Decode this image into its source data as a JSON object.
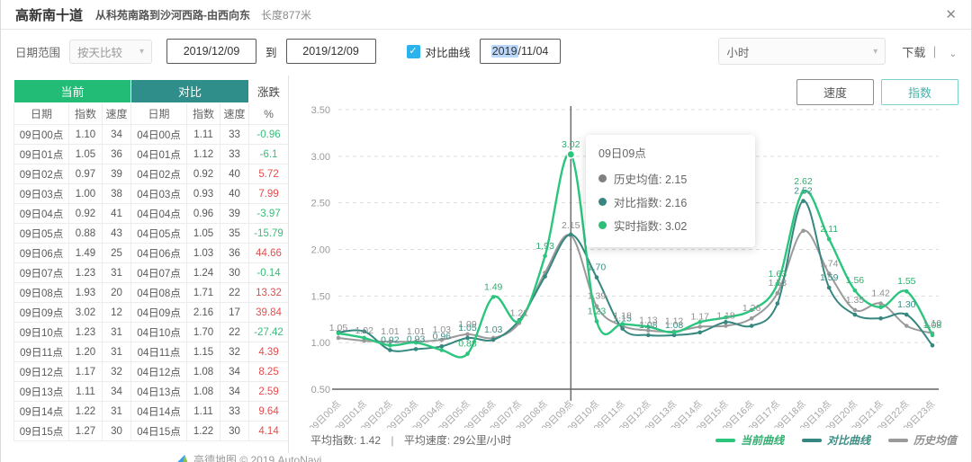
{
  "header": {
    "title": "高新南十道",
    "subtitle": "从科苑南路到沙河西路-由西向东",
    "length": "长度877米",
    "close_icon": "✕"
  },
  "toolbar": {
    "date_range_label": "日期范围",
    "compare_mode": "按天比较",
    "chevron": "▾",
    "date_from": "2019/12/09",
    "to_label": "到",
    "date_to": "2019/12/09",
    "checkbox_check": "✓",
    "compare_checkbox_label": "对比曲线",
    "compare_date_highlight": "2019",
    "compare_date_rest": "/11/04",
    "interval": "小时",
    "download_label": "下载",
    "download_divider": "｜",
    "download_chevron": "⌄"
  },
  "table": {
    "group_headers": {
      "current": "当前",
      "compare": "对比",
      "change": "涨跌"
    },
    "col_headers": [
      "日期",
      "指数",
      "速度",
      "日期",
      "指数",
      "速度",
      "%"
    ],
    "rows": [
      [
        "09日00点",
        "1.10",
        "34",
        "04日00点",
        "1.11",
        "33",
        "-0.96"
      ],
      [
        "09日01点",
        "1.05",
        "36",
        "04日01点",
        "1.12",
        "33",
        "-6.1"
      ],
      [
        "09日02点",
        "0.97",
        "39",
        "04日02点",
        "0.92",
        "40",
        "5.72"
      ],
      [
        "09日03点",
        "1.00",
        "38",
        "04日03点",
        "0.93",
        "40",
        "7.99"
      ],
      [
        "09日04点",
        "0.92",
        "41",
        "04日04点",
        "0.96",
        "39",
        "-3.97"
      ],
      [
        "09日05点",
        "0.88",
        "43",
        "04日05点",
        "1.05",
        "35",
        "-15.79"
      ],
      [
        "09日06点",
        "1.49",
        "25",
        "04日06点",
        "1.03",
        "36",
        "44.66"
      ],
      [
        "09日07点",
        "1.23",
        "31",
        "04日07点",
        "1.24",
        "30",
        "-0.14"
      ],
      [
        "09日08点",
        "1.93",
        "20",
        "04日08点",
        "1.71",
        "22",
        "13.32"
      ],
      [
        "09日09点",
        "3.02",
        "12",
        "04日09点",
        "2.16",
        "17",
        "39.84"
      ],
      [
        "09日10点",
        "1.23",
        "31",
        "04日10点",
        "1.70",
        "22",
        "-27.42"
      ],
      [
        "09日11点",
        "1.20",
        "31",
        "04日11点",
        "1.15",
        "32",
        "4.39"
      ],
      [
        "09日12点",
        "1.17",
        "32",
        "04日12点",
        "1.08",
        "34",
        "8.25"
      ],
      [
        "09日13点",
        "1.11",
        "34",
        "04日13点",
        "1.08",
        "34",
        "2.59"
      ],
      [
        "09日14点",
        "1.22",
        "31",
        "04日14点",
        "1.11",
        "33",
        "9.64"
      ],
      [
        "09日15点",
        "1.27",
        "30",
        "04日15点",
        "1.22",
        "30",
        "4.14"
      ]
    ]
  },
  "chart": {
    "tab_speed": "速度",
    "tab_index": "指数",
    "tooltip": {
      "title": "09日09点",
      "rows": [
        {
          "label": "历史均值",
          "value": "2.15",
          "color": "#808080"
        },
        {
          "label": "对比指数",
          "value": "2.16",
          "color": "#35877f"
        },
        {
          "label": "实时指数",
          "value": "3.02",
          "color": "#2bbf77"
        }
      ]
    },
    "stats": {
      "avg_index": "平均指数: 1.42",
      "divider": "|",
      "avg_speed": "平均速度: 29公里/小时"
    },
    "watermark": "高德地图 © 2019 AutoNavi"
  },
  "chart_data": {
    "type": "line",
    "title": "",
    "xlabel": "",
    "ylabel": "",
    "ylim": [
      0.5,
      3.5
    ],
    "yticks": [
      "0.50",
      "1.00",
      "1.50",
      "2.00",
      "2.50",
      "3.00",
      "3.50"
    ],
    "grid": "dashed-horizontal",
    "legend_position": "bottom-right",
    "highlight_x": 9,
    "x": [
      "09日00点",
      "09日01点",
      "09日02点",
      "09日03点",
      "09日04点",
      "09日05点",
      "09日06点",
      "09日07点",
      "09日08点",
      "09日09点",
      "09日10点",
      "09日11点",
      "09日12点",
      "09日13点",
      "09日14点",
      "09日15点",
      "09日16点",
      "09日17点",
      "09日18点",
      "09日19点",
      "09日20点",
      "09日21点",
      "09日22点",
      "09日23点"
    ],
    "series": [
      {
        "name": "当前曲线",
        "color": "#2bc57e",
        "label_color": "#2fae6f",
        "values": [
          1.1,
          1.05,
          0.97,
          1.0,
          0.92,
          0.88,
          1.49,
          1.23,
          1.93,
          3.02,
          1.23,
          1.2,
          1.17,
          1.11,
          1.22,
          1.27,
          1.35,
          1.63,
          2.62,
          2.11,
          1.56,
          1.38,
          1.55,
          1.08
        ]
      },
      {
        "name": "对比曲线",
        "color": "#35877f",
        "label_color": "#3e8e85",
        "values": [
          1.11,
          1.12,
          0.92,
          0.93,
          0.96,
          1.05,
          1.03,
          1.24,
          1.71,
          2.16,
          1.7,
          1.15,
          1.08,
          1.08,
          1.11,
          1.22,
          1.18,
          1.42,
          2.52,
          1.59,
          1.3,
          1.26,
          1.3,
          0.97
        ]
      },
      {
        "name": "历史均值",
        "color": "#9a9a9a",
        "label_color": "#8f8f8f",
        "values": [
          1.05,
          1.02,
          1.01,
          1.01,
          1.03,
          1.09,
          1.05,
          1.21,
          1.75,
          2.15,
          1.39,
          1.18,
          1.13,
          1.12,
          1.17,
          1.18,
          1.26,
          1.53,
          2.2,
          1.74,
          1.35,
          1.42,
          1.18,
          1.1
        ]
      }
    ],
    "point_labels": [
      {
        "s": 2,
        "i": 0,
        "v": "1.05"
      },
      {
        "s": 2,
        "i": 1,
        "v": "1.02"
      },
      {
        "s": 2,
        "i": 2,
        "v": "1.01"
      },
      {
        "s": 2,
        "i": 3,
        "v": "1.01"
      },
      {
        "s": 2,
        "i": 4,
        "v": "1.03"
      },
      {
        "s": 2,
        "i": 5,
        "v": "1.09"
      },
      {
        "s": 1,
        "i": 2,
        "v": "0.92"
      },
      {
        "s": 1,
        "i": 3,
        "v": "0.93"
      },
      {
        "s": 1,
        "i": 4,
        "v": "0.96"
      },
      {
        "s": 0,
        "i": 5,
        "v": "0.88"
      },
      {
        "s": 1,
        "i": 5,
        "v": "1.05"
      },
      {
        "s": 1,
        "i": 6,
        "v": "1.03"
      },
      {
        "s": 0,
        "i": 6,
        "v": "1.49"
      },
      {
        "s": 2,
        "i": 7,
        "v": "1.21"
      },
      {
        "s": 0,
        "i": 8,
        "v": "1.93"
      },
      {
        "s": 0,
        "i": 9,
        "v": "3.02"
      },
      {
        "s": 2,
        "i": 9,
        "v": "2.15"
      },
      {
        "s": 1,
        "i": 10,
        "v": "1.70"
      },
      {
        "s": 2,
        "i": 10,
        "v": "1.39"
      },
      {
        "s": 0,
        "i": 10,
        "v": "1.23"
      },
      {
        "s": 1,
        "i": 11,
        "v": "1.15"
      },
      {
        "s": 2,
        "i": 11,
        "v": "1.18"
      },
      {
        "s": 1,
        "i": 12,
        "v": "1.08"
      },
      {
        "s": 2,
        "i": 12,
        "v": "1.13"
      },
      {
        "s": 1,
        "i": 13,
        "v": "1.08"
      },
      {
        "s": 2,
        "i": 13,
        "v": "1.12"
      },
      {
        "s": 2,
        "i": 14,
        "v": "1.17"
      },
      {
        "s": 2,
        "i": 15,
        "v": "1.18"
      },
      {
        "s": 2,
        "i": 16,
        "v": "1.26"
      },
      {
        "s": 2,
        "i": 17,
        "v": "1.53"
      },
      {
        "s": 0,
        "i": 17,
        "v": "1.63"
      },
      {
        "s": 0,
        "i": 18,
        "v": "2.62"
      },
      {
        "s": 1,
        "i": 18,
        "v": "2.52"
      },
      {
        "s": 0,
        "i": 19,
        "v": "2.11"
      },
      {
        "s": 2,
        "i": 19,
        "v": "1.74"
      },
      {
        "s": 1,
        "i": 19,
        "v": "1.59"
      },
      {
        "s": 0,
        "i": 20,
        "v": "1.56"
      },
      {
        "s": 2,
        "i": 20,
        "v": "1.35"
      },
      {
        "s": 2,
        "i": 21,
        "v": "1.42"
      },
      {
        "s": 0,
        "i": 22,
        "v": "1.55"
      },
      {
        "s": 1,
        "i": 22,
        "v": "1.30"
      },
      {
        "s": 2,
        "i": 23,
        "v": "1.10"
      },
      {
        "s": 0,
        "i": 23,
        "v": "1.08"
      }
    ]
  }
}
